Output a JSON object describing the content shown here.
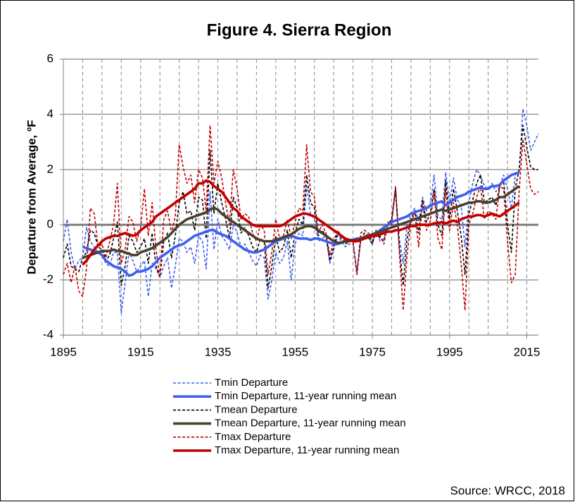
{
  "chart_data": {
    "type": "line",
    "title": "Figure 4. Sierra Region",
    "y_label": "Departure from Average, ºF",
    "source": "Source: WRCC, 2018",
    "xlim": [
      1895,
      2018
    ],
    "xticks": [
      1895,
      1915,
      1935,
      1955,
      1975,
      1995,
      2015
    ],
    "xgrid_interval": 5,
    "ylim": [
      -4,
      6
    ],
    "yticks": [
      -4,
      -2,
      0,
      2,
      4,
      6
    ],
    "grid": true,
    "x": [
      1895,
      1896,
      1897,
      1898,
      1899,
      1900,
      1901,
      1902,
      1903,
      1904,
      1905,
      1906,
      1907,
      1908,
      1909,
      1910,
      1911,
      1912,
      1913,
      1914,
      1915,
      1916,
      1917,
      1918,
      1919,
      1920,
      1921,
      1922,
      1923,
      1924,
      1925,
      1926,
      1927,
      1928,
      1929,
      1930,
      1931,
      1932,
      1933,
      1934,
      1935,
      1936,
      1937,
      1938,
      1939,
      1940,
      1941,
      1942,
      1943,
      1944,
      1945,
      1946,
      1947,
      1948,
      1949,
      1950,
      1951,
      1952,
      1953,
      1954,
      1955,
      1956,
      1957,
      1958,
      1959,
      1960,
      1961,
      1962,
      1963,
      1964,
      1965,
      1966,
      1967,
      1968,
      1969,
      1970,
      1971,
      1972,
      1973,
      1974,
      1975,
      1976,
      1977,
      1978,
      1979,
      1980,
      1981,
      1982,
      1983,
      1984,
      1985,
      1986,
      1987,
      1988,
      1989,
      1990,
      1991,
      1992,
      1993,
      1994,
      1995,
      1996,
      1997,
      1998,
      1999,
      2000,
      2001,
      2002,
      2003,
      2004,
      2005,
      2006,
      2007,
      2008,
      2009,
      2010,
      2011,
      2012,
      2013,
      2014,
      2015,
      2016,
      2017,
      2018
    ],
    "series": [
      {
        "name": "Tmin Departure",
        "color": "#3f5ff0",
        "style": "dashed",
        "values": [
          -0.6,
          0.2,
          -1.0,
          -1.6,
          -1.3,
          -1.2,
          -0.1,
          -0.6,
          -0.8,
          -1.0,
          -1.1,
          -1.4,
          -1.5,
          -1.0,
          -1.0,
          -3.2,
          -2.1,
          -1.0,
          -1.3,
          -1.7,
          -1.5,
          -1.3,
          -2.6,
          -1.4,
          -1.6,
          -1.9,
          -1.5,
          -1.2,
          -2.3,
          -1.5,
          -0.5,
          -0.6,
          -1.0,
          -0.8,
          -1.4,
          -0.4,
          -0.6,
          -1.6,
          1.2,
          -0.9,
          0.2,
          -0.4,
          -0.6,
          -0.9,
          0.0,
          -0.3,
          -0.8,
          -0.7,
          -1.0,
          -1.3,
          -1.5,
          -1.1,
          -1.2,
          -2.7,
          -2.0,
          -1.0,
          -1.4,
          -1.2,
          -0.6,
          -2.0,
          -0.7,
          -0.3,
          -0.4,
          1.4,
          0.4,
          0.2,
          -0.6,
          -0.5,
          -0.4,
          -1.4,
          -0.9,
          -0.4,
          -0.6,
          -0.8,
          -0.7,
          -0.7,
          -1.7,
          -0.6,
          -0.4,
          -0.5,
          -0.7,
          -0.2,
          -0.6,
          -0.5,
          0.0,
          0.2,
          1.2,
          -0.5,
          -1.4,
          0.0,
          0.4,
          0.6,
          0.1,
          1.0,
          0.5,
          0.7,
          1.8,
          0.3,
          0.2,
          1.9,
          0.8,
          1.7,
          0.9,
          0.7,
          -0.8,
          0.8,
          1.5,
          2.0,
          1.8,
          1.4,
          1.3,
          1.5,
          1.2,
          1.4,
          1.8,
          1.3,
          0.6,
          1.8,
          1.9,
          4.2,
          3.6,
          2.7,
          3.0,
          3.3
        ]
      },
      {
        "name": "Tmin  Departure, 11-year running mean",
        "color": "#3f5ff0",
        "style": "solid",
        "values": [
          null,
          null,
          null,
          null,
          null,
          -0.8,
          -0.85,
          -0.9,
          -0.95,
          -1.0,
          -1.1,
          -1.3,
          -1.4,
          -1.5,
          -1.55,
          -1.6,
          -1.7,
          -1.85,
          -1.8,
          -1.7,
          -1.7,
          -1.65,
          -1.6,
          -1.5,
          -1.35,
          -1.2,
          -1.1,
          -1.0,
          -0.9,
          -0.8,
          -0.75,
          -0.7,
          -0.6,
          -0.5,
          -0.4,
          -0.35,
          -0.3,
          -0.25,
          -0.2,
          -0.2,
          -0.3,
          -0.35,
          -0.4,
          -0.5,
          -0.6,
          -0.7,
          -0.8,
          -0.9,
          -0.95,
          -1.0,
          -1.0,
          -0.95,
          -0.9,
          -0.8,
          -0.7,
          -0.6,
          -0.55,
          -0.5,
          -0.45,
          -0.4,
          -0.45,
          -0.5,
          -0.5,
          -0.5,
          -0.55,
          -0.5,
          -0.5,
          -0.55,
          -0.6,
          -0.65,
          -0.7,
          -0.7,
          -0.65,
          -0.6,
          -0.55,
          -0.55,
          -0.5,
          -0.5,
          -0.45,
          -0.4,
          -0.35,
          -0.3,
          -0.2,
          -0.1,
          0.0,
          0.1,
          0.15,
          0.2,
          0.25,
          0.3,
          0.4,
          0.45,
          0.5,
          0.55,
          0.6,
          0.7,
          0.75,
          0.8,
          0.85,
          0.7,
          0.8,
          0.9,
          1.0,
          1.05,
          1.1,
          1.2,
          1.25,
          1.3,
          1.35,
          1.3,
          1.3,
          1.4,
          1.4,
          1.45,
          1.6,
          1.7,
          1.8,
          1.85,
          1.9,
          null,
          null,
          null,
          null,
          null
        ]
      },
      {
        "name": "Tmean Departure",
        "color": "#000000",
        "style": "dashed",
        "values": [
          -1.2,
          -0.7,
          -1.5,
          -1.6,
          -1.7,
          -1.2,
          -1.0,
          -0.2,
          -0.3,
          -0.8,
          -0.9,
          -1.3,
          -1.1,
          -0.5,
          0.1,
          -2.2,
          -1.5,
          -0.4,
          -0.6,
          -1.0,
          -0.8,
          -0.5,
          -1.4,
          -0.3,
          -1.5,
          -1.9,
          -0.6,
          -0.3,
          -1.2,
          -0.4,
          0.8,
          1.2,
          0.4,
          0.5,
          -0.2,
          1.0,
          0.9,
          -0.5,
          2.7,
          0.4,
          1.5,
          0.8,
          0.2,
          -0.5,
          1.0,
          0.6,
          -0.3,
          -0.1,
          -0.4,
          -0.8,
          -1.0,
          -0.5,
          -0.6,
          -2.3,
          -1.5,
          -0.4,
          -1.0,
          -0.8,
          -0.2,
          -1.2,
          -0.3,
          0.2,
          0.0,
          1.8,
          0.8,
          0.6,
          -0.4,
          -0.2,
          -0.4,
          -1.3,
          -0.8,
          -0.3,
          -0.5,
          -0.7,
          -0.6,
          -0.6,
          -1.8,
          -0.5,
          -0.3,
          -0.4,
          -0.7,
          -0.2,
          -0.5,
          -0.6,
          0.0,
          0.2,
          1.3,
          -0.8,
          -2.2,
          -0.5,
          0.2,
          0.5,
          -0.3,
          0.9,
          0.1,
          0.4,
          1.3,
          0.0,
          -0.4,
          1.6,
          0.2,
          1.3,
          0.5,
          -0.4,
          -1.8,
          0.4,
          0.9,
          1.5,
          1.8,
          0.8,
          0.9,
          1.0,
          0.7,
          1.4,
          1.6,
          0.0,
          -1.0,
          1.3,
          2.0,
          3.6,
          2.8,
          2.1,
          2.0,
          2.0
        ]
      },
      {
        "name": "Tmean Departure, 11-year running mean",
        "color": "#4a4030",
        "style": "solid",
        "values": [
          null,
          null,
          null,
          null,
          null,
          -1.2,
          -1.15,
          -1.1,
          -1.05,
          -1.0,
          -0.95,
          -0.95,
          -0.95,
          -0.9,
          -0.95,
          -0.95,
          -1.0,
          -1.05,
          -1.1,
          -1.1,
          -1.0,
          -0.95,
          -0.9,
          -0.85,
          -0.75,
          -0.65,
          -0.55,
          -0.45,
          -0.3,
          -0.15,
          0.0,
          0.1,
          0.2,
          0.25,
          0.3,
          0.35,
          0.4,
          0.45,
          0.55,
          0.6,
          0.55,
          0.4,
          0.3,
          0.2,
          0.1,
          0.0,
          -0.1,
          -0.2,
          -0.3,
          -0.4,
          -0.5,
          -0.55,
          -0.6,
          -0.6,
          -0.6,
          -0.55,
          -0.5,
          -0.45,
          -0.4,
          -0.35,
          -0.25,
          -0.15,
          -0.1,
          -0.05,
          -0.05,
          -0.1,
          -0.2,
          -0.3,
          -0.4,
          -0.5,
          -0.6,
          -0.65,
          -0.65,
          -0.6,
          -0.6,
          -0.55,
          -0.55,
          -0.5,
          -0.45,
          -0.4,
          -0.35,
          -0.3,
          -0.25,
          -0.2,
          -0.15,
          -0.1,
          -0.05,
          0.0,
          0.05,
          0.1,
          0.15,
          0.2,
          0.25,
          0.3,
          0.35,
          0.4,
          0.45,
          0.5,
          0.55,
          0.5,
          0.55,
          0.6,
          0.65,
          0.7,
          0.75,
          0.8,
          0.8,
          0.85,
          0.85,
          0.8,
          0.8,
          0.85,
          0.9,
          1.0,
          1.0,
          1.1,
          1.2,
          1.3,
          1.4,
          null,
          null,
          null,
          null,
          null
        ]
      },
      {
        "name": "Tmax Departure",
        "color": "#c00000",
        "style": "dashed",
        "values": [
          -1.8,
          -1.4,
          -2.1,
          -1.5,
          -2.4,
          -2.6,
          -1.6,
          0.6,
          0.4,
          -0.8,
          -0.7,
          -1.2,
          -0.6,
          0.0,
          1.5,
          -1.4,
          -0.9,
          0.3,
          0.1,
          -0.6,
          -0.1,
          1.3,
          -0.4,
          0.8,
          -0.9,
          -1.9,
          0.2,
          0.5,
          -0.3,
          0.3,
          2.9,
          2.1,
          1.5,
          1.8,
          0.8,
          2.0,
          1.7,
          0.5,
          3.6,
          1.5,
          2.3,
          1.7,
          0.8,
          0.0,
          2.0,
          1.3,
          0.2,
          0.4,
          0.3,
          -0.3,
          -0.6,
          0.0,
          -0.2,
          -1.8,
          -1.0,
          0.2,
          -0.5,
          -0.4,
          0.2,
          -0.5,
          0.1,
          0.6,
          0.5,
          2.9,
          1.2,
          1.0,
          -0.3,
          0.0,
          -0.3,
          -1.1,
          -0.6,
          -0.2,
          -0.4,
          -0.6,
          -0.5,
          -0.6,
          -1.8,
          -0.3,
          -0.2,
          -0.3,
          -0.6,
          -0.2,
          -0.4,
          -0.7,
          0.1,
          0.0,
          1.4,
          -1.0,
          -3.1,
          -1.1,
          0.1,
          0.4,
          -0.8,
          0.8,
          -0.2,
          0.1,
          1.2,
          -0.5,
          -0.9,
          1.3,
          -0.2,
          0.8,
          0.0,
          -1.4,
          -3.1,
          0.0,
          0.4,
          1.0,
          1.4,
          0.2,
          0.5,
          0.4,
          0.2,
          1.4,
          1.3,
          -0.6,
          -2.1,
          -1.8,
          1.2,
          3.1,
          2.2,
          1.3,
          1.1,
          1.2
        ]
      },
      {
        "name": "Tmax Departure, 11-year running mean",
        "color": "#c00000",
        "style": "solid",
        "values": [
          null,
          null,
          null,
          null,
          null,
          -1.45,
          -1.3,
          -1.1,
          -0.9,
          -0.75,
          -0.6,
          -0.5,
          -0.45,
          -0.4,
          -0.4,
          -0.35,
          -0.3,
          -0.35,
          -0.4,
          -0.35,
          -0.2,
          -0.1,
          0.0,
          0.1,
          0.3,
          0.4,
          0.5,
          0.6,
          0.7,
          0.8,
          0.9,
          1.0,
          1.1,
          1.2,
          1.3,
          1.5,
          1.5,
          1.6,
          1.55,
          1.4,
          1.3,
          1.2,
          1.0,
          0.8,
          0.6,
          0.5,
          0.3,
          0.2,
          0.1,
          0.0,
          -0.05,
          -0.05,
          -0.05,
          -0.05,
          -0.05,
          -0.05,
          -0.05,
          0.0,
          0.1,
          0.2,
          0.3,
          0.35,
          0.4,
          0.4,
          0.35,
          0.3,
          0.2,
          0.1,
          0.0,
          -0.1,
          -0.2,
          -0.3,
          -0.4,
          -0.5,
          -0.55,
          -0.6,
          -0.6,
          -0.55,
          -0.5,
          -0.45,
          -0.4,
          -0.4,
          -0.35,
          -0.3,
          -0.25,
          -0.25,
          -0.2,
          -0.2,
          -0.15,
          -0.1,
          -0.05,
          -0.05,
          0.0,
          0.0,
          0.0,
          0.0,
          0.05,
          0.05,
          0.1,
          0.05,
          0.1,
          0.15,
          0.1,
          0.2,
          0.25,
          0.3,
          0.3,
          0.35,
          0.35,
          0.3,
          0.35,
          0.4,
          0.35,
          0.3,
          0.4,
          0.5,
          0.6,
          0.7,
          0.8,
          null,
          null,
          null,
          null,
          null
        ]
      }
    ]
  }
}
